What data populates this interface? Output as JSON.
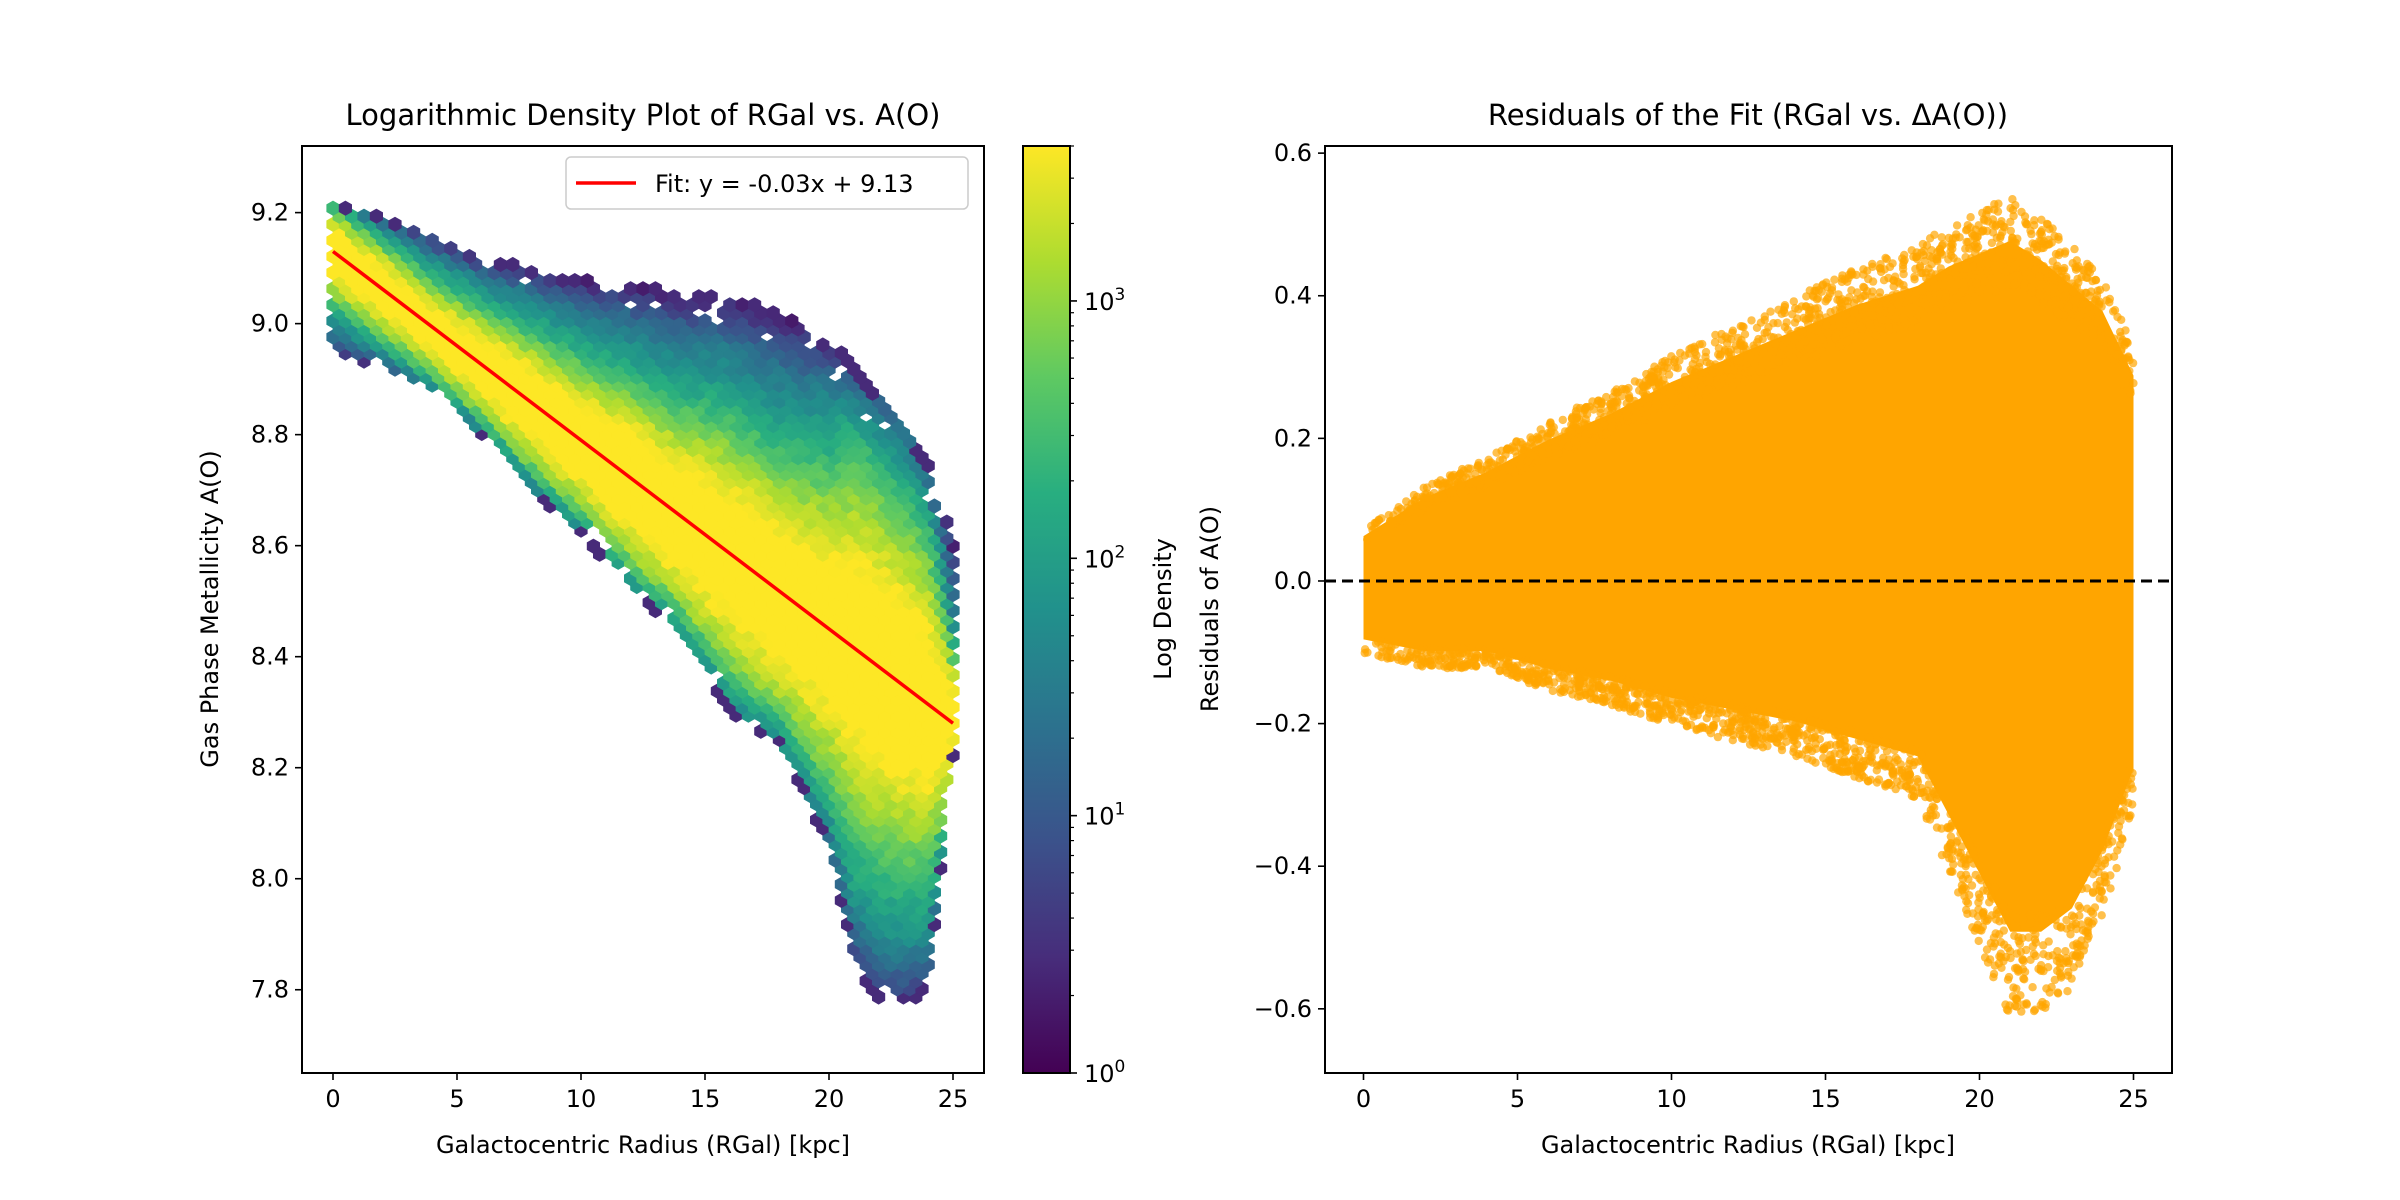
{
  "chart_data": [
    {
      "type": "heatmap",
      "subtype": "hexbin",
      "title": "Logarithmic Density Plot of RGal vs. A(O)",
      "xlabel": "Galactocentric Radius (RGal) [kpc]",
      "ylabel": "Gas Phase Metallicity A(O)",
      "xlim": [
        -1.25,
        26.25
      ],
      "ylim": [
        7.65,
        9.32
      ],
      "xticks": [
        0,
        5,
        10,
        15,
        20,
        25
      ],
      "xtick_labels": [
        "0",
        "5",
        "10",
        "15",
        "20",
        "25"
      ],
      "yticks": [
        7.8,
        8.0,
        8.2,
        8.4,
        8.6,
        8.8,
        9.0,
        9.2
      ],
      "ytick_labels": [
        "7.8",
        "8.0",
        "8.2",
        "8.4",
        "8.6",
        "8.8",
        "9.0",
        "9.2"
      ],
      "grid": false,
      "colormap": "viridis",
      "colorbar": {
        "label": "Log Density",
        "scale": "log",
        "range": [
          1,
          4000
        ],
        "ticks": [
          1,
          10,
          100,
          1000
        ],
        "tick_labels": [
          "10^0",
          "10^1",
          "10^2",
          "10^3"
        ]
      },
      "density_envelope": {
        "x": [
          0,
          2,
          4,
          6,
          8,
          10,
          12,
          14,
          16,
          18,
          20,
          21,
          22,
          23,
          24,
          25
        ],
        "upper": [
          9.22,
          9.19,
          9.16,
          9.12,
          9.1,
          9.08,
          9.07,
          9.06,
          9.05,
          9.02,
          8.97,
          8.93,
          8.88,
          8.83,
          8.75,
          8.62
        ],
        "lower": [
          8.94,
          8.92,
          8.88,
          8.8,
          8.7,
          8.62,
          8.52,
          8.44,
          8.3,
          8.24,
          8.06,
          7.85,
          7.78,
          7.77,
          7.8,
          8.22
        ]
      },
      "fit_line": {
        "label": "Fit: y = -0.03x + 9.13",
        "slope": -0.034,
        "intercept": 9.13,
        "x_range": [
          0,
          25
        ],
        "color": "#ff0000"
      },
      "legend": {
        "position": "top-right",
        "entries": [
          "Fit: y = -0.03x + 9.13"
        ]
      }
    },
    {
      "type": "scatter",
      "title": "Residuals of the Fit (RGal vs. ΔA(O))",
      "xlabel": "Galactocentric Radius (RGal) [kpc]",
      "ylabel": "Residuals of A(O)",
      "xlim": [
        -1.25,
        26.25
      ],
      "ylim": [
        -0.69,
        0.61
      ],
      "xticks": [
        0,
        5,
        10,
        15,
        20,
        25
      ],
      "xtick_labels": [
        "0",
        "5",
        "10",
        "15",
        "20",
        "25"
      ],
      "yticks": [
        -0.6,
        -0.4,
        -0.2,
        0.0,
        0.2,
        0.4,
        0.6
      ],
      "ytick_labels": [
        "−0.6",
        "−0.4",
        "−0.2",
        "0.0",
        "0.2",
        "0.4",
        "0.6"
      ],
      "grid": false,
      "point_color": "#ffa500",
      "point_alpha": 0.7,
      "envelope": {
        "x": [
          0,
          2,
          4,
          6,
          8,
          10,
          12,
          14,
          16,
          18,
          19,
          20,
          21,
          22,
          23,
          24,
          25
        ],
        "upper": [
          0.07,
          0.13,
          0.17,
          0.22,
          0.26,
          0.31,
          0.35,
          0.39,
          0.43,
          0.46,
          0.49,
          0.51,
          0.53,
          0.5,
          0.46,
          0.42,
          0.32
        ],
        "lower": [
          -0.1,
          -0.12,
          -0.12,
          -0.15,
          -0.17,
          -0.2,
          -0.22,
          -0.24,
          -0.27,
          -0.3,
          -0.4,
          -0.5,
          -0.6,
          -0.6,
          -0.56,
          -0.46,
          -0.32
        ]
      },
      "reference_line": {
        "y": 0.0,
        "style": "dashed",
        "color": "#000000"
      }
    }
  ]
}
